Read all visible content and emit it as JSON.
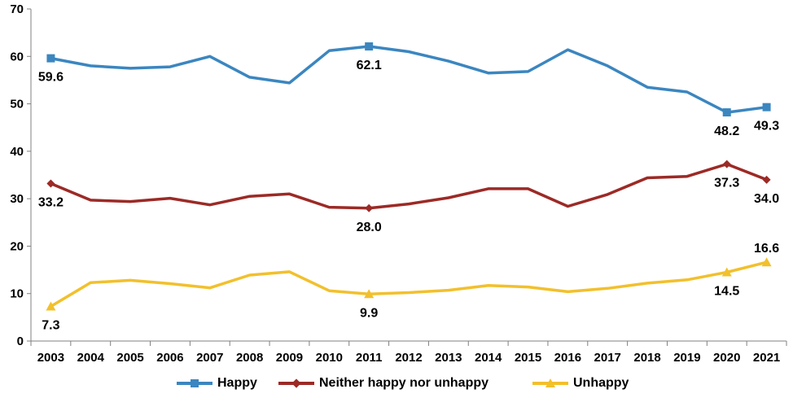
{
  "chart_data": {
    "type": "line",
    "categories": [
      "2003",
      "2004",
      "2005",
      "2006",
      "2007",
      "2008",
      "2009",
      "2010",
      "2011",
      "2012",
      "2013",
      "2014",
      "2015",
      "2016",
      "2017",
      "2018",
      "2019",
      "2020",
      "2021"
    ],
    "ylim": [
      0,
      70
    ],
    "yticks": [
      "0",
      "10",
      "20",
      "30",
      "40",
      "50",
      "60",
      "70"
    ],
    "grid": false,
    "legend_position": "bottom",
    "series": [
      {
        "name": "Happy",
        "color": "#3b86c0",
        "marker": "square",
        "values": [
          59.6,
          58.0,
          57.5,
          57.8,
          60.0,
          55.6,
          54.4,
          61.2,
          62.1,
          61.0,
          59.0,
          56.5,
          56.8,
          61.4,
          58.0,
          53.5,
          52.5,
          48.2,
          49.3
        ],
        "labels": [
          {
            "index": 0,
            "text": "59.6",
            "pos": "below"
          },
          {
            "index": 8,
            "text": "62.1",
            "pos": "below"
          },
          {
            "index": 17,
            "text": "48.2",
            "pos": "below"
          },
          {
            "index": 18,
            "text": "49.3",
            "pos": "below"
          }
        ]
      },
      {
        "name": "Neither happy nor unhappy",
        "color": "#9c2a26",
        "marker": "diamond",
        "values": [
          33.2,
          29.7,
          29.4,
          30.1,
          28.7,
          30.5,
          31.0,
          28.2,
          28.0,
          28.9,
          30.2,
          32.1,
          32.1,
          28.4,
          30.9,
          34.4,
          34.7,
          37.3,
          34.0
        ],
        "labels": [
          {
            "index": 0,
            "text": "33.2",
            "pos": "below"
          },
          {
            "index": 8,
            "text": "28.0",
            "pos": "below"
          },
          {
            "index": 17,
            "text": "37.3",
            "pos": "below"
          },
          {
            "index": 18,
            "text": "34.0",
            "pos": "below"
          }
        ]
      },
      {
        "name": "Unhappy",
        "color": "#f2c02c",
        "marker": "triangle",
        "values": [
          7.3,
          12.3,
          12.8,
          12.1,
          11.2,
          13.9,
          14.6,
          10.6,
          9.9,
          10.2,
          10.7,
          11.7,
          11.4,
          10.4,
          11.1,
          12.2,
          12.9,
          14.5,
          16.6
        ],
        "labels": [
          {
            "index": 0,
            "text": "7.3",
            "pos": "below"
          },
          {
            "index": 8,
            "text": "9.9",
            "pos": "below"
          },
          {
            "index": 17,
            "text": "14.5",
            "pos": "below"
          },
          {
            "index": 18,
            "text": "16.6",
            "pos": "above"
          }
        ]
      }
    ]
  }
}
